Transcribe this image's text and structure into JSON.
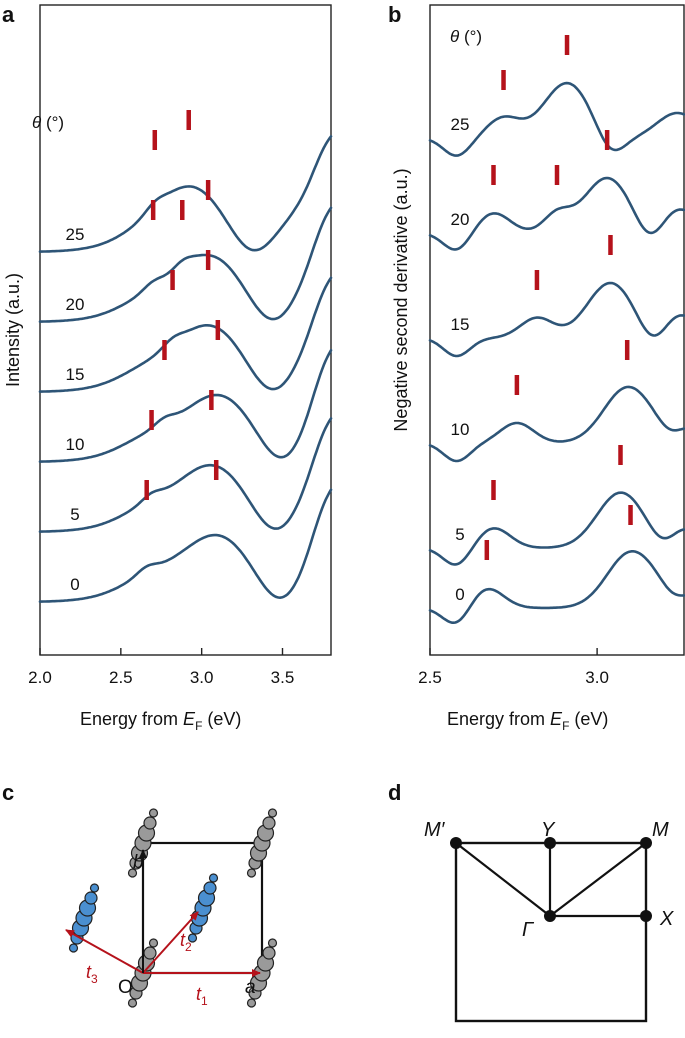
{
  "figure": {
    "panel_labels": {
      "a": "a",
      "b": "b",
      "c": "c",
      "d": "d"
    },
    "colors": {
      "curve": "#2e5577",
      "marker": "#b5121b",
      "atom_gray": "#9a9a9a",
      "atom_blue": "#4a8fd0"
    }
  },
  "chart_data": [
    {
      "type": "line",
      "panel": "a",
      "ylabel": "Intensity (a.u.)",
      "xlabel_prefix": "Energy from ",
      "xlabel_symbol": "E",
      "xlabel_sub": "F",
      "xlabel_suffix": " (eV)",
      "xlim": [
        2.0,
        3.8
      ],
      "xticks": [
        "2.0",
        "2.5",
        "3.0",
        "3.5"
      ],
      "xtick_values": [
        2.0,
        2.5,
        3.0,
        3.5
      ],
      "legend_title": "θ (°)",
      "series": [
        {
          "name": "0",
          "peaks_eV": [
            2.66,
            3.09
          ]
        },
        {
          "name": "5",
          "peaks_eV": [
            2.69,
            3.06
          ]
        },
        {
          "name": "10",
          "peaks_eV": [
            2.77,
            3.1
          ]
        },
        {
          "name": "15",
          "peaks_eV": [
            2.82,
            3.04
          ]
        },
        {
          "name": "20",
          "peaks_eV": [
            2.7,
            2.88,
            3.04
          ]
        },
        {
          "name": "25",
          "peaks_eV": [
            2.71,
            2.92
          ]
        }
      ]
    },
    {
      "type": "line",
      "panel": "b",
      "ylabel": "Negative second derivative (a.u.)",
      "xlabel_prefix": "Energy from ",
      "xlabel_symbol": "E",
      "xlabel_sub": "F",
      "xlabel_suffix": " (eV)",
      "xlim": [
        2.5,
        3.26
      ],
      "xticks": [
        "2.5",
        "3.0"
      ],
      "xtick_values": [
        2.5,
        3.0
      ],
      "legend_title": "θ (°)",
      "series": [
        {
          "name": "0",
          "peaks_eV": [
            2.67,
            3.1
          ]
        },
        {
          "name": "5",
          "peaks_eV": [
            2.69,
            3.07
          ]
        },
        {
          "name": "10",
          "peaks_eV": [
            2.76,
            3.09
          ]
        },
        {
          "name": "15",
          "peaks_eV": [
            2.82,
            3.04
          ]
        },
        {
          "name": "20",
          "peaks_eV": [
            2.69,
            2.88,
            3.03
          ]
        },
        {
          "name": "25",
          "peaks_eV": [
            2.72,
            2.91
          ]
        }
      ]
    }
  ],
  "lattice": {
    "labels": {
      "b": "b",
      "a": "a",
      "o": "O",
      "t1": "t",
      "t1_sub": "1",
      "t2": "t",
      "t2_sub": "2",
      "t3": "t",
      "t3_sub": "3"
    }
  },
  "brillouin_zone": {
    "points": {
      "m_prime": "M′",
      "y": "Y",
      "m": "M",
      "gamma": "Γ",
      "x": "X"
    }
  }
}
